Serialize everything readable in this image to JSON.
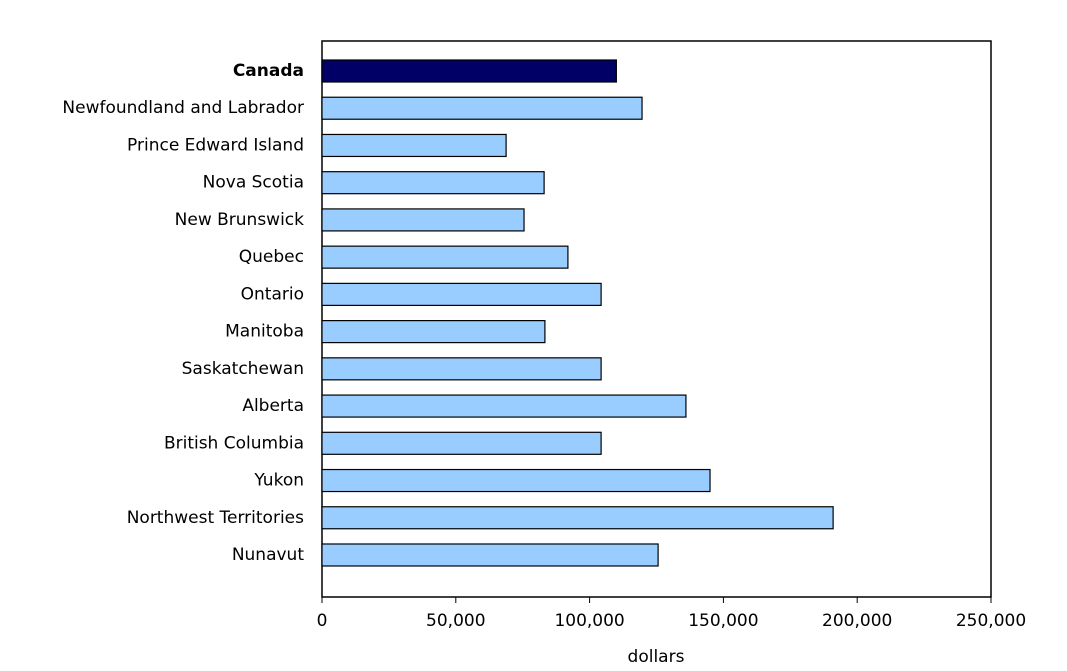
{
  "chart_data": {
    "type": "barh",
    "categories": [
      "Canada",
      "Newfoundland and Labrador",
      "Prince Edward Island",
      "Nova Scotia",
      "New Brunswick",
      "Quebec",
      "Ontario",
      "Manitoba",
      "Saskatchewan",
      "Alberta",
      "British Columbia",
      "Yukon",
      "Northwest Territories",
      "Nunavut"
    ],
    "values": [
      110000,
      119600,
      68800,
      83000,
      75500,
      91900,
      104300,
      83300,
      104300,
      136000,
      104300,
      145000,
      191000,
      125600
    ],
    "colors": [
      "#000066",
      "#99ccff",
      "#99ccff",
      "#99ccff",
      "#99ccff",
      "#99ccff",
      "#99ccff",
      "#99ccff",
      "#99ccff",
      "#99ccff",
      "#99ccff",
      "#99ccff",
      "#99ccff",
      "#99ccff"
    ],
    "xlabel": "dollars",
    "xlim": [
      0,
      250000
    ],
    "xticks": [
      0,
      {
        "value": 50000,
        "label": "50,000"
      },
      {
        "value": 100000,
        "label": "100,000"
      },
      {
        "value": 150000,
        "label": "150,000"
      },
      {
        "value": 200000,
        "label": "200,000"
      },
      {
        "value": 250000,
        "label": "250,000"
      }
    ],
    "grid": false
  }
}
